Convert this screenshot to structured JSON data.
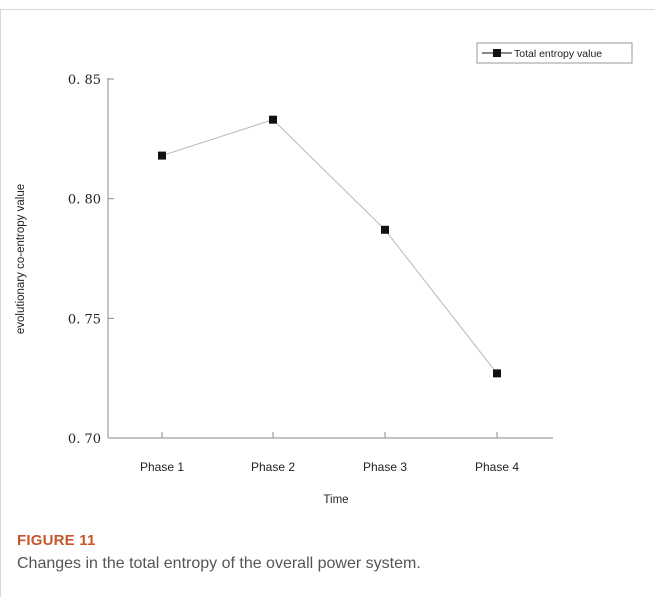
{
  "figure": {
    "label": "FIGURE 11",
    "caption": "Changes in the total entropy of the overall power system."
  },
  "chart_data": {
    "type": "line",
    "title": "",
    "xlabel": "Time",
    "ylabel": "evolutionary co-entropy value",
    "categories": [
      "Phase 1",
      "Phase 2",
      "Phase 3",
      "Phase 4"
    ],
    "series": [
      {
        "name": "Total entropy value",
        "values": [
          0.818,
          0.833,
          0.787,
          0.727
        ],
        "color": "#b7b7b7",
        "marker": "square",
        "marker_color": "#111111"
      }
    ],
    "ylim": [
      0.7,
      0.85
    ],
    "yticks": [
      0.7,
      0.75,
      0.8,
      0.85
    ],
    "ytick_labels": [
      "0. 70",
      "0. 75",
      "0. 80",
      "0. 85"
    ],
    "grid": false,
    "legend_position": "top-right"
  }
}
